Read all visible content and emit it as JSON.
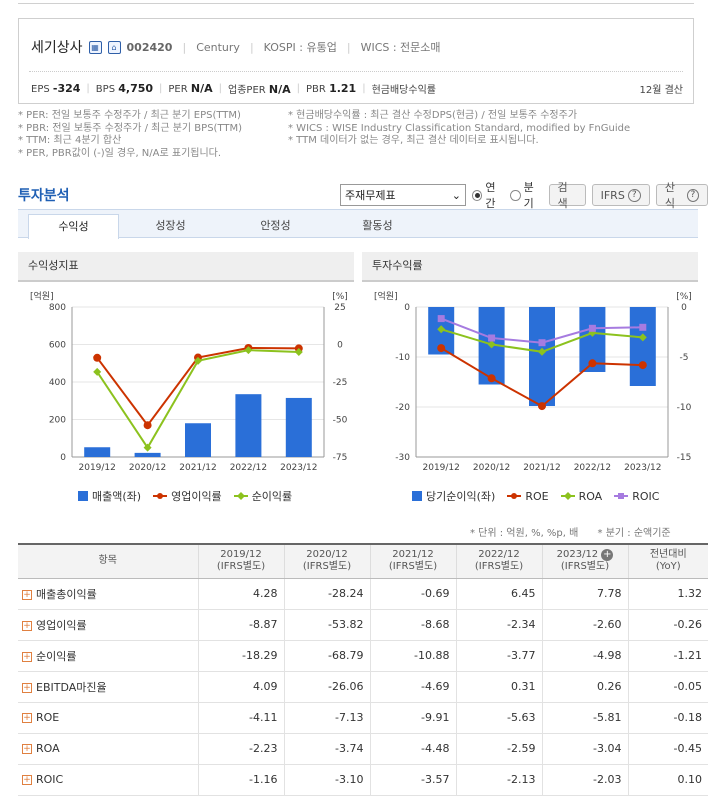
{
  "company": {
    "name": "세기상사",
    "code": "002420",
    "fiscal_label": "Century",
    "market": "KOSPI : 유통업",
    "wics": "WICS : 전문소매",
    "icons": [
      "building-icon",
      "home-icon"
    ]
  },
  "metrics": [
    {
      "label": "EPS",
      "value": "-324"
    },
    {
      "label": "BPS",
      "value": "4,750"
    },
    {
      "label": "PER",
      "value": "N/A"
    },
    {
      "label": "업종PER",
      "value": "N/A"
    },
    {
      "label": "PBR",
      "value": "1.21"
    },
    {
      "label": "현금배당수익률",
      "value": ""
    }
  ],
  "settlement": "12월 결산",
  "notes_left": [
    "* PER: 전일 보통주 수정주가 / 최근 분기 EPS(TTM)",
    "* PBR: 전일 보통주 수정주가 / 최근 분기 BPS(TTM)",
    "* TTM: 최근 4분기 합산",
    "* PER, PBR값이 (-)일 경우, N/A로 표기됩니다."
  ],
  "notes_right": [
    "* 현금배당수익률 : 최근 결산 수정DPS(현금) / 전일 보통주 수정주가",
    "* WICS : WISE Industry Classification Standard, modified by FnGuide",
    "* TTM 데이터가 없는 경우, 최근 결산 데이터로 표시됩니다."
  ],
  "analysis": {
    "title": "투자분석",
    "select_value": "주재무제표",
    "radio_annual": "연간",
    "radio_quarter": "분기",
    "search_btn": "검색",
    "ifrs_btn": "IFRS",
    "formula_btn": "산식",
    "tabs": [
      "수익성",
      "성장성",
      "안정성",
      "활동성"
    ]
  },
  "colors": {
    "bar": "#2a6fd8",
    "red_line": "#cc3300",
    "green_line": "#8cc21e",
    "purple_line": "#a67be0",
    "accent": "#1f5fb4"
  },
  "chart_data": [
    {
      "type": "bar",
      "title": "수익성지표",
      "categories": [
        "2019/12",
        "2020/12",
        "2021/12",
        "2022/12",
        "2023/12"
      ],
      "left_unit": "[억원]",
      "right_unit": "[%]",
      "left_ticks": [
        "800",
        "600",
        "400",
        "200",
        "0"
      ],
      "right_ticks": [
        "25",
        "0",
        "-25",
        "-50",
        "-75"
      ],
      "left_ylim": [
        0,
        800
      ],
      "right_ylim": [
        -75,
        25
      ],
      "series": [
        {
          "name": "매출액(좌)",
          "kind": "bar",
          "axis": "left",
          "values": [
            52,
            22,
            180,
            335,
            315
          ]
        },
        {
          "name": "영업이익률",
          "kind": "line",
          "axis": "right",
          "values": [
            -8.87,
            -53.82,
            -8.68,
            -2.34,
            -2.6
          ]
        },
        {
          "name": "순이익률",
          "kind": "line",
          "axis": "right",
          "values": [
            -18.29,
            -68.79,
            -10.88,
            -3.77,
            -4.98
          ]
        }
      ]
    },
    {
      "type": "bar",
      "title": "투자수익률",
      "categories": [
        "2019/12",
        "2020/12",
        "2021/12",
        "2022/12",
        "2023/12"
      ],
      "left_unit": "[억원]",
      "right_unit": "[%]",
      "left_ticks": [
        "0",
        "-10",
        "-20",
        "-30"
      ],
      "right_ticks": [
        "0",
        "-5",
        "-10",
        "-15"
      ],
      "left_ylim": [
        -30,
        0
      ],
      "right_ylim": [
        -15,
        0
      ],
      "series": [
        {
          "name": "당기순이익(좌)",
          "kind": "bar",
          "axis": "left",
          "values": [
            -9.5,
            -15.5,
            -19.8,
            -13,
            -15.8
          ]
        },
        {
          "name": "ROE",
          "kind": "line",
          "axis": "right",
          "values": [
            -4.11,
            -7.13,
            -9.91,
            -5.63,
            -5.81
          ]
        },
        {
          "name": "ROA",
          "kind": "line",
          "axis": "right",
          "values": [
            -2.23,
            -3.74,
            -4.48,
            -2.59,
            -3.04
          ]
        },
        {
          "name": "ROIC",
          "kind": "line",
          "axis": "right",
          "values": [
            -1.16,
            -3.1,
            -3.57,
            -2.13,
            -2.03
          ]
        }
      ]
    }
  ],
  "unit_note": "* 단위 : 억원, %, %p, 배",
  "quarter_note": "* 분기 : 순액기준",
  "table": {
    "header_item": "항목",
    "columns": [
      {
        "year": "2019/12",
        "sub": "(IFRS별도)"
      },
      {
        "year": "2020/12",
        "sub": "(IFRS별도)"
      },
      {
        "year": "2021/12",
        "sub": "(IFRS별도)"
      },
      {
        "year": "2022/12",
        "sub": "(IFRS별도)"
      },
      {
        "year": "2023/12",
        "sub": "(IFRS별도)"
      },
      {
        "year": "전년대비",
        "sub": "(YoY)"
      }
    ],
    "rows": [
      {
        "label": "매출총이익률",
        "values": [
          "4.28",
          "-28.24",
          "-0.69",
          "6.45",
          "7.78",
          "1.32"
        ]
      },
      {
        "label": "영업이익률",
        "values": [
          "-8.87",
          "-53.82",
          "-8.68",
          "-2.34",
          "-2.60",
          "-0.26"
        ]
      },
      {
        "label": "순이익률",
        "values": [
          "-18.29",
          "-68.79",
          "-10.88",
          "-3.77",
          "-4.98",
          "-1.21"
        ]
      },
      {
        "label": "EBITDA마진율",
        "values": [
          "4.09",
          "-26.06",
          "-4.69",
          "0.31",
          "0.26",
          "-0.05"
        ]
      },
      {
        "label": "ROE",
        "values": [
          "-4.11",
          "-7.13",
          "-9.91",
          "-5.63",
          "-5.81",
          "-0.18"
        ]
      },
      {
        "label": "ROA",
        "values": [
          "-2.23",
          "-3.74",
          "-4.48",
          "-2.59",
          "-3.04",
          "-0.45"
        ]
      },
      {
        "label": "ROIC",
        "values": [
          "-1.16",
          "-3.10",
          "-3.57",
          "-2.13",
          "-2.03",
          "0.10"
        ]
      }
    ]
  }
}
